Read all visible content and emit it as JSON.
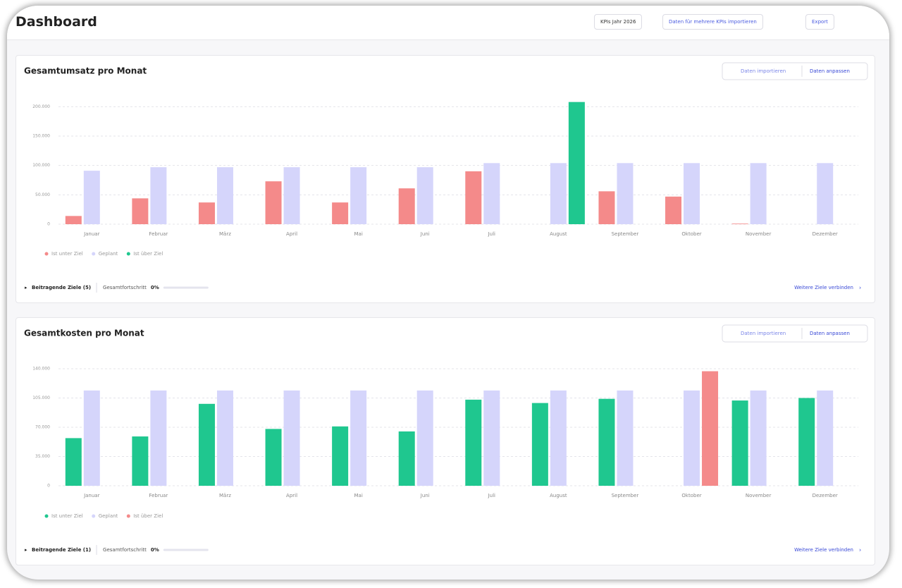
{
  "header": {
    "title": "Dashboard",
    "buttons": [
      "KPIs Jahr 2026",
      "Daten für mehrere KPIs importieren",
      "Export"
    ]
  },
  "cards": [
    {
      "buttons": [
        "Daten importieren",
        "Daten anpassen"
      ],
      "footer": {
        "toggle": "Beitragende Ziele (5)",
        "progress_label": "Gesamtfortschritt",
        "progress": "0%",
        "link": "Weitere Ziele verbinden"
      }
    },
    {
      "buttons": [
        "Daten importieren",
        "Daten anpassen"
      ],
      "footer": {
        "toggle": "Beitragende Ziele (1)",
        "progress_label": "Gesamtfortschritt",
        "progress": "0%",
        "link": "Weitere Ziele verbinden"
      }
    }
  ],
  "chart_data": [
    {
      "type": "bar",
      "title": "Gesamtumsatz pro Monat",
      "categories": [
        "Januar",
        "Februar",
        "März",
        "April",
        "Mai",
        "Juni",
        "Juli",
        "August",
        "September",
        "Oktober",
        "November",
        "Dezember"
      ],
      "series": [
        {
          "name": "Ist unter Ziel",
          "color": "#f48a8a",
          "values": [
            14000,
            44000,
            37000,
            73000,
            37000,
            61000,
            90000,
            null,
            56000,
            47000,
            1000,
            null
          ]
        },
        {
          "name": "Geplant",
          "color": "#d5d5fb",
          "values": [
            91000,
            97000,
            97000,
            97000,
            97000,
            97000,
            104000,
            104000,
            104000,
            104000,
            104000,
            104000
          ]
        },
        {
          "name": "Ist über Ziel",
          "color": "#1fc78f",
          "values": [
            null,
            null,
            null,
            null,
            null,
            null,
            null,
            208000,
            null,
            null,
            null,
            null
          ]
        }
      ],
      "ylim": [
        0,
        210000
      ],
      "yticks": [
        0,
        {
          "value": 50000,
          "label": "50.000"
        },
        {
          "value": 100000,
          "label": "100.000"
        },
        {
          "value": 150000,
          "label": "150.000"
        },
        {
          "value": 200000,
          "label": "200.000"
        }
      ],
      "grid": true
    },
    {
      "type": "bar",
      "title": "Gesamtkosten pro Monat",
      "categories": [
        "Januar",
        "Februar",
        "März",
        "April",
        "Mai",
        "Juni",
        "Juli",
        "August",
        "September",
        "Oktober",
        "November",
        "Dezember"
      ],
      "series": [
        {
          "name": "Ist unter Ziel",
          "color": "#1fc78f",
          "values": [
            57000,
            59000,
            98000,
            68000,
            71000,
            65000,
            103000,
            99000,
            104000,
            null,
            102000,
            105000
          ]
        },
        {
          "name": "Geplant",
          "color": "#d5d5fb",
          "values": [
            114000,
            114000,
            114000,
            114000,
            114000,
            114000,
            114000,
            114000,
            114000,
            114000,
            114000,
            114000
          ]
        },
        {
          "name": "Ist über Ziel",
          "color": "#f48a8a",
          "values": [
            null,
            null,
            null,
            null,
            null,
            null,
            null,
            null,
            null,
            137000,
            null,
            null
          ]
        }
      ],
      "ylim": [
        0,
        140000
      ],
      "yticks": [
        0,
        {
          "value": 35000,
          "label": "35.000"
        },
        {
          "value": 70000,
          "label": "70.000"
        },
        {
          "value": 105000,
          "label": "105.000"
        },
        {
          "value": 140000,
          "label": "140.000"
        }
      ],
      "grid": true
    }
  ]
}
